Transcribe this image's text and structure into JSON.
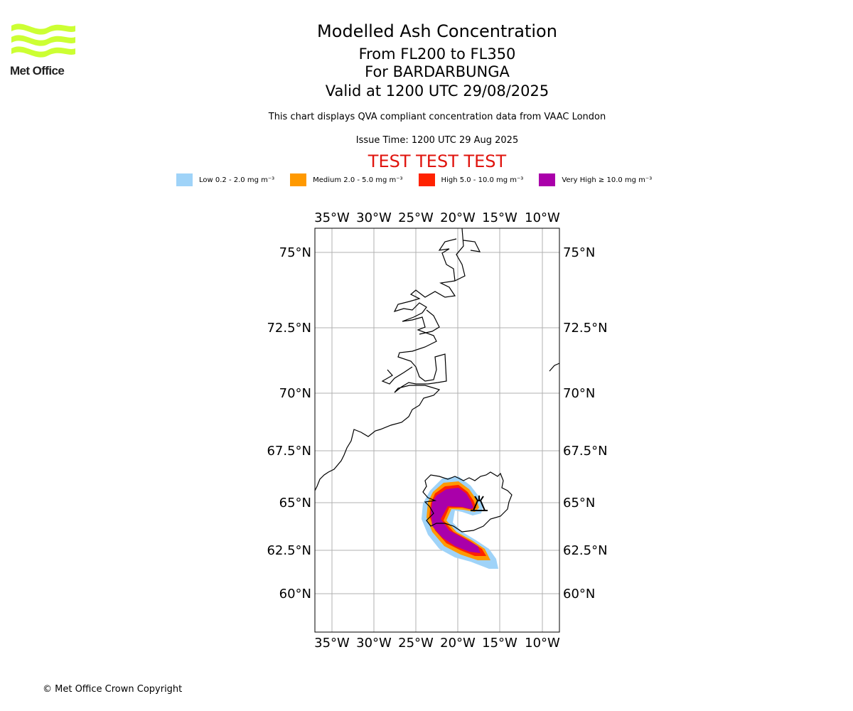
{
  "logo": {
    "text": "Met Office",
    "color": "#ccff33"
  },
  "header": {
    "title": "Modelled Ash Concentration",
    "line2": "From FL200 to FL350",
    "line3": "For BARDARBUNGA",
    "line4": "Valid at 1200 UTC 29/08/2025",
    "subtitle": "This chart displays QVA compliant concentration data from VAAC London",
    "issue_time": "Issue Time: 1200 UTC 29 Aug 2025",
    "test_banner": "TEST TEST TEST"
  },
  "legend": [
    {
      "label": "Low 0.2 - 2.0 mg m⁻³",
      "color": "#9fd3f8"
    },
    {
      "label": "Medium 2.0 - 5.0 mg m⁻³",
      "color": "#ff9900"
    },
    {
      "label": "High 5.0 - 10.0 mg m⁻³",
      "color": "#ff2200"
    },
    {
      "label": "Very High ≥ 10.0 mg m⁻³",
      "color": "#aa00aa"
    }
  ],
  "map": {
    "lon_labels": [
      "35°W",
      "30°W",
      "25°W",
      "20°W",
      "15°W",
      "10°W"
    ],
    "lat_labels": [
      "75°N",
      "72.5°N",
      "70°N",
      "67.5°N",
      "65°N",
      "62.5°N",
      "60°N"
    ],
    "volcano": "BARDARBUNGA"
  },
  "footer": {
    "copyright": "© Met Office Crown Copyright"
  }
}
